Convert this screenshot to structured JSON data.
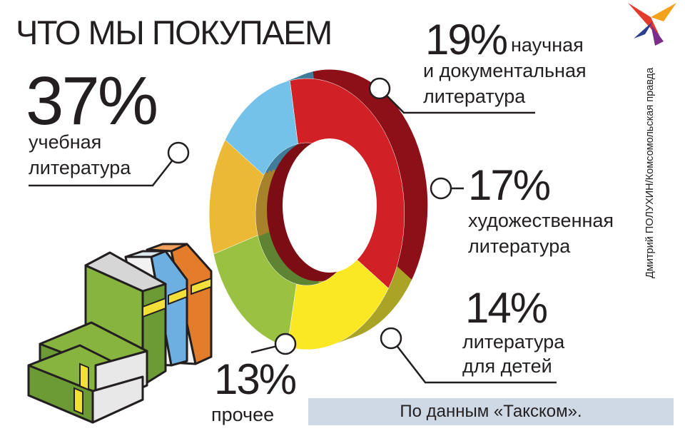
{
  "title": "ЧТО МЫ ПОКУПАЕМ",
  "credit": "Дмитрий ПОЛУХИН/Комсомольская правда",
  "source": "По данным «Такском».",
  "chart_data": {
    "type": "pie",
    "title": "ЧТО МЫ ПОКУПАЕМ",
    "unit": "%",
    "slices": [
      {
        "value": 37,
        "pct_label": "37%",
        "label_lines": [
          "учебная",
          "литература"
        ],
        "color": "#d12026",
        "side": "#8d1018"
      },
      {
        "value": 19,
        "pct_label": "19%",
        "label_lines": [
          "научная",
          "и документальная",
          "литература"
        ],
        "color": "#fbe824",
        "side": "#a9a326"
      },
      {
        "value": 17,
        "pct_label": "17%",
        "label_lines": [
          "художественная",
          "литература"
        ],
        "color": "#9ac142",
        "side": "#5e8332"
      },
      {
        "value": 14,
        "pct_label": "14%",
        "label_lines": [
          "литература",
          "для детей"
        ],
        "color": "#ebb936",
        "side": "#a8822b"
      },
      {
        "value": 13,
        "pct_label": "13%",
        "label_lines": [
          "прочее"
        ],
        "color": "#74c1ea",
        "side": "#3f7c99"
      }
    ]
  }
}
